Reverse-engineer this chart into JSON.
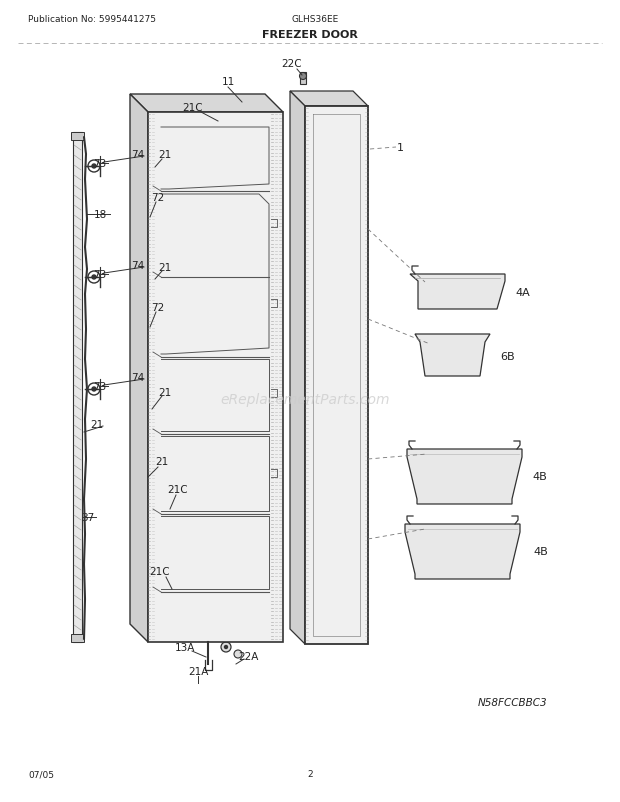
{
  "title": "FREEZER DOOR",
  "pub_no": "Publication No: 5995441275",
  "model": "GLHS36EE",
  "date": "07/05",
  "page": "2",
  "diagram_code": "N58FCCBBC3",
  "watermark": "eReplacementParts.com",
  "bg_color": "#ffffff",
  "line_color": "#333333",
  "label_color": "#222222",
  "header_sep_color": "#aaaaaa"
}
